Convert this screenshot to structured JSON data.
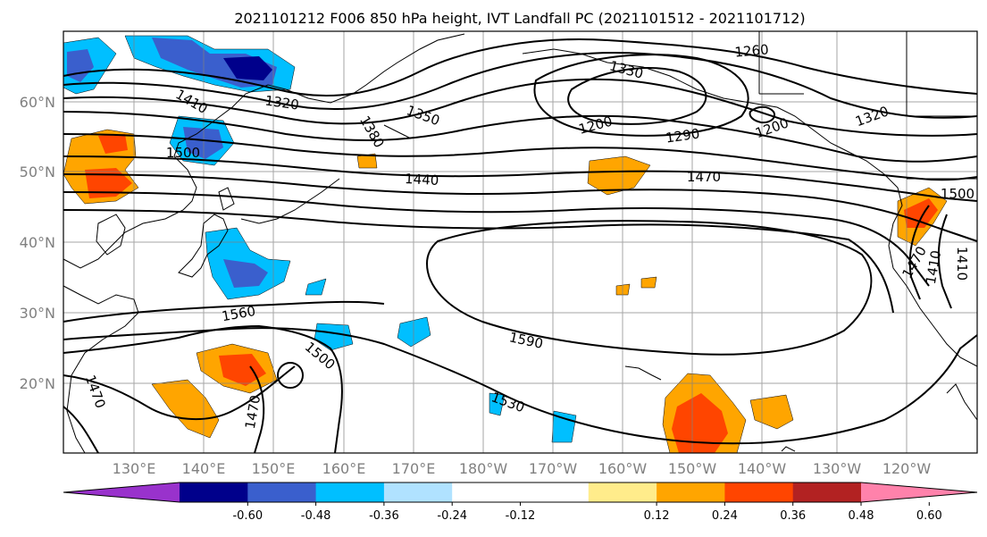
{
  "title": "2021101212 F006 850 hPa height, IVT Landfall PC (2021101512 - 2021101712)",
  "lat_labels": [
    "60°N",
    "50°N",
    "40°N",
    "30°N",
    "20°N"
  ],
  "lon_labels": [
    "130°E",
    "140°E",
    "150°E",
    "160°E",
    "170°E",
    "180°W",
    "170°W",
    "160°W",
    "150°W",
    "140°W",
    "130°W",
    "120°W"
  ],
  "contour_labels": [
    "1260",
    "1330",
    "1320",
    "1410",
    "1350",
    "1380",
    "1200",
    "1290",
    "1200",
    "1320",
    "1500",
    "1440",
    "1470",
    "1500",
    "1560",
    "1590",
    "1500",
    "1530",
    "1470",
    "1470",
    "1470",
    "1410",
    "1410"
  ],
  "colorbar": {
    "colors": [
      "#9932cc",
      "#00008b",
      "#3a5fcd",
      "#00bfff",
      "#b0e2ff",
      "#ffffff",
      "#ffffff",
      "#ffec8b",
      "#ffa500",
      "#ff4500",
      "#b22222",
      "#ff82ab"
    ],
    "tick_labels": [
      "-0.60",
      "-0.48",
      "-0.36",
      "-0.24",
      "-0.12",
      "0.12",
      "0.24",
      "0.36",
      "0.48",
      "0.60"
    ]
  },
  "colors": {
    "land_outline": "#000000",
    "contour": "#000000",
    "grid": "#808080",
    "label_gray": "#808080"
  }
}
